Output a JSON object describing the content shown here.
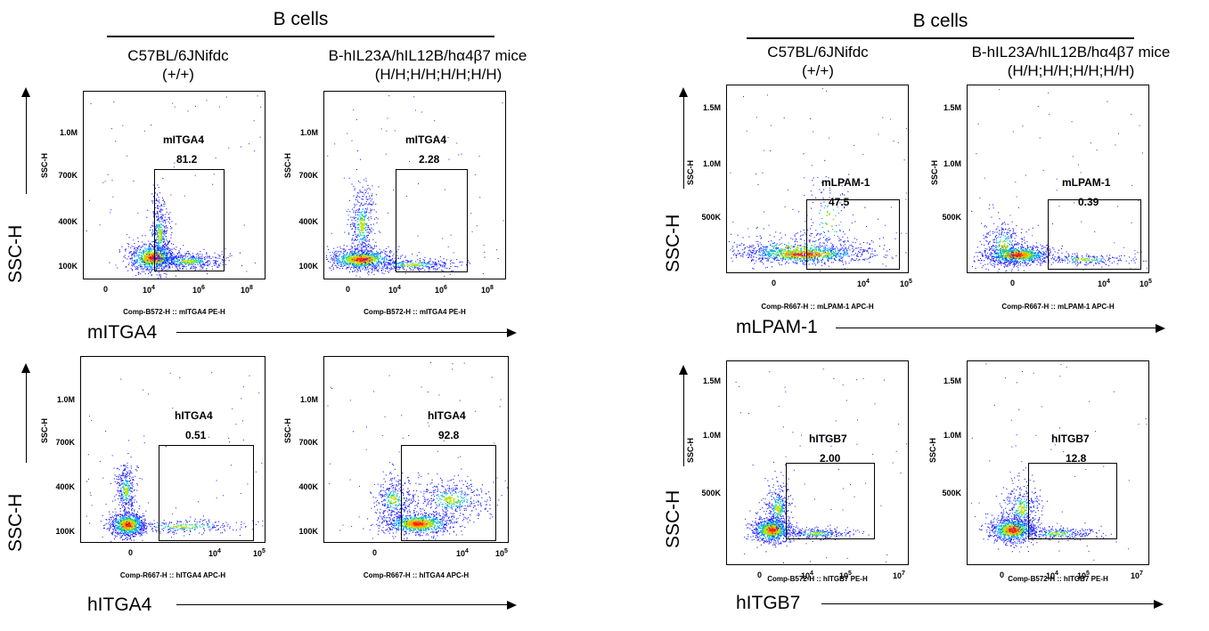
{
  "left_panel": {
    "title": "B cells",
    "conditions": [
      {
        "line1": "C57BL/6JNifdc",
        "line2": "(+/+)"
      },
      {
        "line1": "B-hIL23A/hIL12B/hα4β7 mice",
        "line2": "(H/H;H/H;H/H;H/H)"
      }
    ],
    "rows": [
      {
        "x_axis_label": "mITGA4",
        "y_axis_label": "SSC-H"
      },
      {
        "x_axis_label": "hITGA4",
        "y_axis_label": "SSC-H"
      }
    ]
  },
  "right_panel": {
    "title": "B cells",
    "conditions": [
      {
        "line1": "C57BL/6JNifdc",
        "line2": "(+/+)"
      },
      {
        "line1": "B-hIL23A/hIL12B/hα4β7 mice",
        "line2": "(H/H;H/H;H/H;H/H)"
      }
    ],
    "rows": [
      {
        "x_axis_label": "mLPAM-1",
        "y_axis_label": "SSC-H"
      },
      {
        "x_axis_label": "hITGB7",
        "y_axis_label": "SSC-H"
      }
    ]
  },
  "chart_data": [
    {
      "type": "scatter",
      "panel": "left",
      "row": 0,
      "col": 0,
      "ylabel": "SSC-H",
      "xlabel": "Comp-B572-H :: mITGA4 PE-H",
      "x_ticks": [
        "0",
        "10^4",
        "10^6",
        "10^8"
      ],
      "y_ticks": [
        "100K",
        "400K",
        "700K",
        "1.0M"
      ],
      "gate": {
        "name": "mITGA4",
        "percent": "81.2"
      }
    },
    {
      "type": "scatter",
      "panel": "left",
      "row": 0,
      "col": 1,
      "ylabel": "SSC-H",
      "xlabel": "Comp-B572-H :: mITGA4 PE-H",
      "x_ticks": [
        "0",
        "10^4",
        "10^6",
        "10^8"
      ],
      "y_ticks": [
        "100K",
        "400K",
        "700K",
        "1.0M"
      ],
      "gate": {
        "name": "mITGA4",
        "percent": "2.28"
      }
    },
    {
      "type": "scatter",
      "panel": "left",
      "row": 1,
      "col": 0,
      "ylabel": "SSC-H",
      "xlabel": "Comp-R667-H :: hITGA4 APC-H",
      "x_ticks": [
        "0",
        "10^4",
        "10^5"
      ],
      "y_ticks": [
        "100K",
        "400K",
        "700K",
        "1.0M"
      ],
      "gate": {
        "name": "hITGA4",
        "percent": "0.51"
      }
    },
    {
      "type": "scatter",
      "panel": "left",
      "row": 1,
      "col": 1,
      "ylabel": "SSC-H",
      "xlabel": "Comp-R667-H :: hITGA4 APC-H",
      "x_ticks": [
        "0",
        "10^4",
        "10^5"
      ],
      "y_ticks": [
        "100K",
        "400K",
        "700K",
        "1.0M"
      ],
      "gate": {
        "name": "hITGA4",
        "percent": "92.8"
      }
    },
    {
      "type": "scatter",
      "panel": "right",
      "row": 0,
      "col": 0,
      "ylabel": "SSC-H",
      "xlabel": "Comp-R667-H :: mLPAM-1 APC-H",
      "x_ticks": [
        "0",
        "10^4",
        "10^5"
      ],
      "y_ticks": [
        "500K",
        "1.0M",
        "1.5M"
      ],
      "gate": {
        "name": "mLPAM-1",
        "percent": "47.5"
      }
    },
    {
      "type": "scatter",
      "panel": "right",
      "row": 0,
      "col": 1,
      "ylabel": "SSC-H",
      "xlabel": "Comp-R667-H :: mLPAM-1 APC-H",
      "x_ticks": [
        "0",
        "10^4",
        "10^5"
      ],
      "y_ticks": [
        "500K",
        "1.0M",
        "1.5M"
      ],
      "gate": {
        "name": "mLPAM-1",
        "percent": "0.39"
      }
    },
    {
      "type": "scatter",
      "panel": "right",
      "row": 1,
      "col": 0,
      "ylabel": "SSC-H",
      "xlabel": "Comp-B572-H :: hITGB7 PE-H",
      "x_ticks": [
        "0",
        "10^4",
        "10^5",
        "10^7"
      ],
      "y_ticks": [
        "500K",
        "1.0M",
        "1.5M"
      ],
      "gate": {
        "name": "hITGB7",
        "percent": "2.00"
      }
    },
    {
      "type": "scatter",
      "panel": "right",
      "row": 1,
      "col": 1,
      "ylabel": "SSC-H",
      "xlabel": "Comp-B572-H :: hITGB7 PE-H",
      "x_ticks": [
        "0",
        "10^4",
        "10^5",
        "10^7"
      ],
      "y_ticks": [
        "500K",
        "1.0M",
        "1.5M"
      ],
      "gate": {
        "name": "hITGB7",
        "percent": "12.8"
      }
    }
  ]
}
